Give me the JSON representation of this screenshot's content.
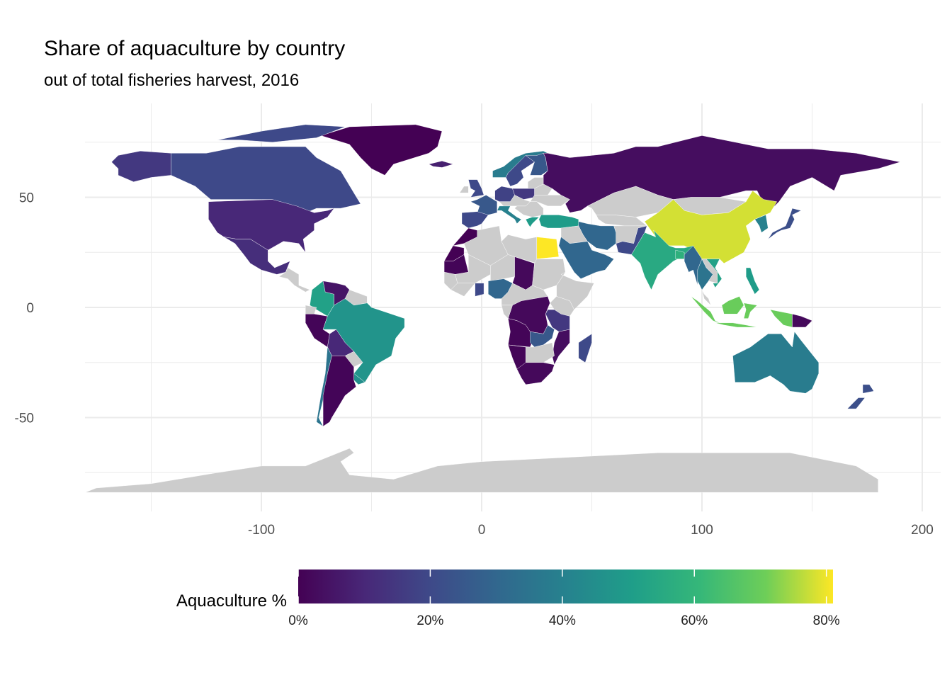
{
  "title": "Share of aquaculture by country",
  "subtitle": "out of total fisheries harvest, 2016",
  "chart_data": {
    "type": "choropleth",
    "x_axis": {
      "ticks": [
        -100,
        0,
        100,
        200
      ],
      "tick_labels": [
        "-100",
        "0",
        "100",
        "200"
      ],
      "range": [
        -190,
        210
      ]
    },
    "y_axis": {
      "ticks": [
        50,
        0,
        -50
      ],
      "tick_labels": [
        "50",
        "0",
        "-50"
      ],
      "range": [
        -90,
        90
      ]
    },
    "grid": true,
    "no_data_color": "#cccccc",
    "legend": {
      "title": "Aquaculture %",
      "position": "bottom",
      "ticks": [
        0,
        20,
        40,
        60,
        80
      ],
      "tick_labels": [
        "0%",
        "20%",
        "40%",
        "60%",
        "80%"
      ],
      "range": [
        0,
        81
      ],
      "palette": [
        "#440154",
        "#3b528b",
        "#21908c",
        "#5dc863",
        "#fde725"
      ]
    },
    "regions": [
      {
        "name": "Canada",
        "value": 20
      },
      {
        "name": "Alaska (USA)",
        "value": 15
      },
      {
        "name": "United States",
        "value": 10
      },
      {
        "name": "Greenland",
        "value": 0
      },
      {
        "name": "Mexico",
        "value": 12
      },
      {
        "name": "Colombia",
        "value": 52
      },
      {
        "name": "Venezuela",
        "value": 5
      },
      {
        "name": "Brazil",
        "value": 47
      },
      {
        "name": "Peru",
        "value": 1
      },
      {
        "name": "Bolivia",
        "value": 10
      },
      {
        "name": "Chile",
        "value": 35
      },
      {
        "name": "Argentina",
        "value": 1
      },
      {
        "name": "Uruguay",
        "value": 45
      },
      {
        "name": "Iceland",
        "value": 8
      },
      {
        "name": "Norway",
        "value": 38
      },
      {
        "name": "Sweden",
        "value": 20
      },
      {
        "name": "Finland",
        "value": 25
      },
      {
        "name": "Russia",
        "value": 3
      },
      {
        "name": "United Kingdom",
        "value": 20
      },
      {
        "name": "France",
        "value": 25
      },
      {
        "name": "Spain",
        "value": 20
      },
      {
        "name": "Germany",
        "value": 18
      },
      {
        "name": "Poland",
        "value": 15
      },
      {
        "name": "Italy",
        "value": 40
      },
      {
        "name": "Greece",
        "value": 50
      },
      {
        "name": "Turkey",
        "value": 50
      },
      {
        "name": "Morocco",
        "value": 0
      },
      {
        "name": "Western Sahara",
        "value": 0
      },
      {
        "name": "Mauritania",
        "value": 1
      },
      {
        "name": "Egypt",
        "value": 81
      },
      {
        "name": "Chad",
        "value": 2
      },
      {
        "name": "Nigeria",
        "value": 30
      },
      {
        "name": "Ghana",
        "value": 20
      },
      {
        "name": "DR Congo",
        "value": 2
      },
      {
        "name": "Tanzania",
        "value": 15
      },
      {
        "name": "Zambia",
        "value": 25
      },
      {
        "name": "Angola",
        "value": 1
      },
      {
        "name": "Namibia",
        "value": 1
      },
      {
        "name": "Mozambique",
        "value": 3
      },
      {
        "name": "South Africa",
        "value": 2
      },
      {
        "name": "Madagascar",
        "value": 20
      },
      {
        "name": "Iran",
        "value": 30
      },
      {
        "name": "Saudi Arabia",
        "value": 30
      },
      {
        "name": "Pakistan",
        "value": 20
      },
      {
        "name": "India",
        "value": 55
      },
      {
        "name": "Bangladesh",
        "value": 58
      },
      {
        "name": "Myanmar",
        "value": 30
      },
      {
        "name": "Thailand",
        "value": 35
      },
      {
        "name": "Vietnam",
        "value": 52
      },
      {
        "name": "Philippines",
        "value": 50
      },
      {
        "name": "China",
        "value": 78
      },
      {
        "name": "Japan",
        "value": 22
      },
      {
        "name": "Korea",
        "value": 40
      },
      {
        "name": "Indonesia",
        "value": 70
      },
      {
        "name": "Papua New Guinea",
        "value": 2
      },
      {
        "name": "Australia",
        "value": 38
      },
      {
        "name": "New Zealand",
        "value": 22
      }
    ]
  }
}
